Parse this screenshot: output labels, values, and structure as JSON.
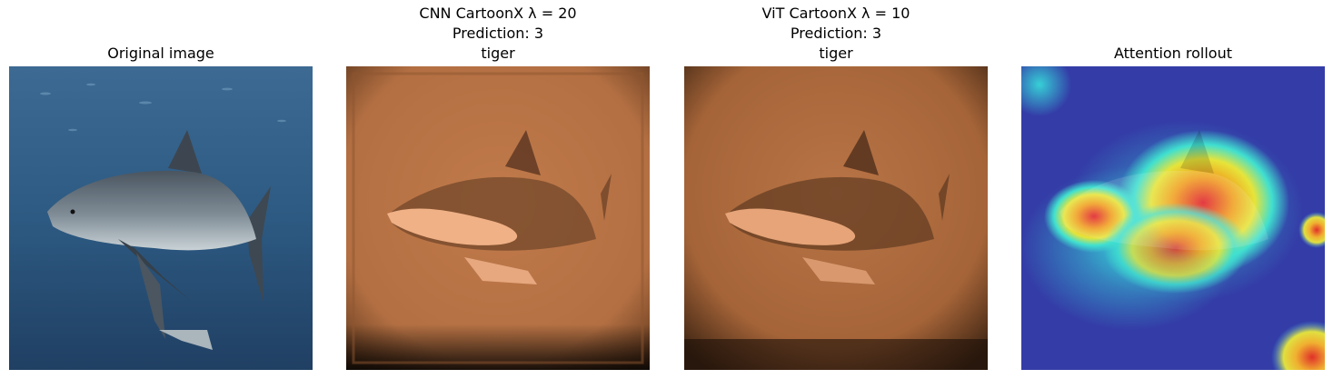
{
  "panels": [
    {
      "title_lines": [
        "Original image"
      ],
      "image": "underwater-tiger-shark-photo"
    },
    {
      "title_lines": [
        "CNN CartoonX λ = 20",
        "Prediction: 3",
        "tiger"
      ],
      "image": "copper-cartoon-shark-explanation"
    },
    {
      "title_lines": [
        "ViT CartoonX λ = 10",
        "Prediction: 3",
        "tiger"
      ],
      "image": "copper-cartoon-shark-explanation-smooth"
    },
    {
      "title_lines": [
        "Attention rollout"
      ],
      "image": "jet-heatmap-shark-overlay"
    }
  ],
  "colors": {
    "ocean": "#2c557a",
    "copper": "#c47a4a",
    "heat_high": "#e0202a"
  }
}
